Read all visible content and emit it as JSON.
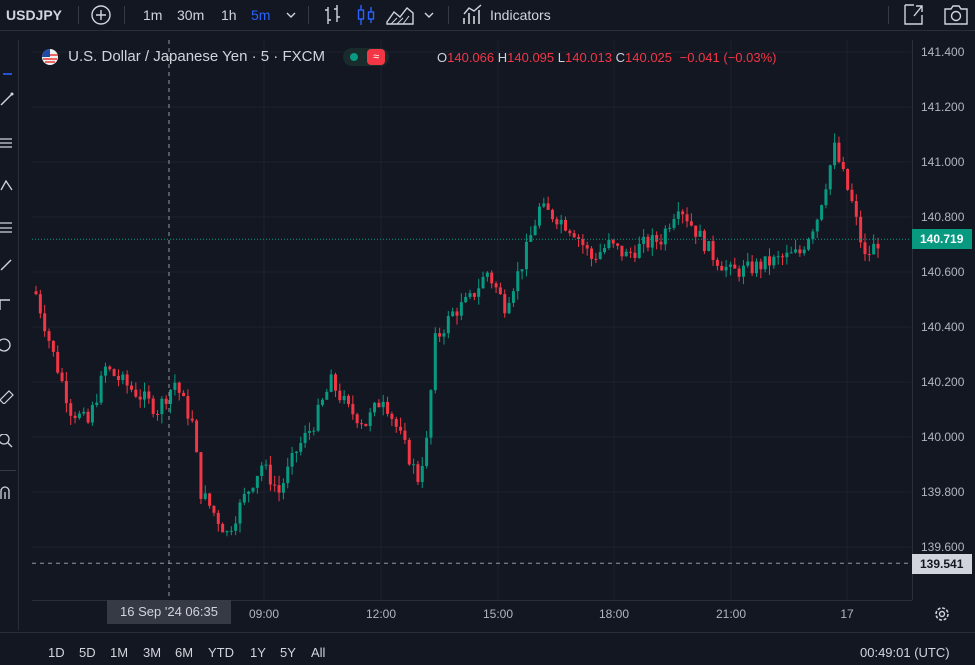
{
  "toolbar": {
    "symbol": "USDJPY",
    "intervals": [
      "1m",
      "30m",
      "1h",
      "5m"
    ],
    "active_interval": "5m",
    "indicators_label": "Indicators"
  },
  "legend": {
    "title": "U.S. Dollar / Japanese Yen · 5 · FXCM",
    "o_label": "O",
    "o_value": "140.066",
    "h_label": "H",
    "h_value": "140.095",
    "l_label": "L",
    "l_value": "140.013",
    "c_label": "C",
    "c_value": "140.025",
    "change": "−0.041 (−0.03%)"
  },
  "price_axis": {
    "ticks": [
      "141.400",
      "141.200",
      "141.000",
      "140.800",
      "140.600",
      "140.400",
      "140.200",
      "140.000",
      "139.800",
      "139.600"
    ],
    "current_price": "140.719",
    "crosshair_price": "139.541"
  },
  "time_axis": {
    "crosshair_date": "16 Sep '24   06:35",
    "ticks": [
      "09:00",
      "12:00",
      "15:00",
      "18:00",
      "21:00",
      "17"
    ]
  },
  "bottom_bar": {
    "ranges": [
      "1D",
      "5D",
      "1M",
      "3M",
      "6M",
      "YTD",
      "1Y",
      "5Y",
      "All"
    ],
    "clock": "00:49:01 (UTC)"
  },
  "colors": {
    "background": "#131722",
    "up": "#089981",
    "down": "#f23645",
    "accent": "#2962ff",
    "current_price_bg": "#089981"
  },
  "chart_data": {
    "type": "candlestick",
    "symbol": "USDJPY",
    "interval": "5",
    "ylim": [
      139.5,
      141.45
    ],
    "x_ticks": [
      "09:00",
      "12:00",
      "15:00",
      "18:00",
      "21:00",
      "17"
    ],
    "path_close": [
      [
        0,
        140.52
      ],
      [
        4,
        140.3
      ],
      [
        8,
        140.1
      ],
      [
        12,
        140.05
      ],
      [
        16,
        140.25
      ],
      [
        20,
        140.2
      ],
      [
        24,
        140.15
      ],
      [
        28,
        140.1
      ],
      [
        32,
        140.2
      ],
      [
        36,
        140.05
      ],
      [
        38,
        139.8
      ],
      [
        44,
        139.65
      ],
      [
        48,
        139.78
      ],
      [
        52,
        139.9
      ],
      [
        56,
        139.8
      ],
      [
        60,
        139.95
      ],
      [
        64,
        140.05
      ],
      [
        68,
        140.2
      ],
      [
        72,
        140.1
      ],
      [
        76,
        140.05
      ],
      [
        80,
        140.15
      ],
      [
        84,
        140.0
      ],
      [
        88,
        139.85
      ],
      [
        90,
        139.98
      ],
      [
        92,
        140.35
      ],
      [
        96,
        140.45
      ],
      [
        100,
        140.5
      ],
      [
        104,
        140.6
      ],
      [
        108,
        140.48
      ],
      [
        112,
        140.63
      ],
      [
        116,
        140.83
      ],
      [
        120,
        140.8
      ],
      [
        124,
        140.75
      ],
      [
        128,
        140.65
      ],
      [
        132,
        140.7
      ],
      [
        136,
        140.66
      ],
      [
        140,
        140.7
      ],
      [
        144,
        140.72
      ],
      [
        148,
        140.85
      ],
      [
        152,
        140.75
      ],
      [
        156,
        140.66
      ],
      [
        160,
        140.6
      ],
      [
        164,
        140.61
      ],
      [
        168,
        140.63
      ],
      [
        172,
        140.65
      ],
      [
        176,
        140.67
      ],
      [
        180,
        140.8
      ],
      [
        184,
        141.05
      ],
      [
        188,
        140.85
      ],
      [
        191,
        140.65
      ],
      [
        194,
        140.71
      ]
    ]
  }
}
